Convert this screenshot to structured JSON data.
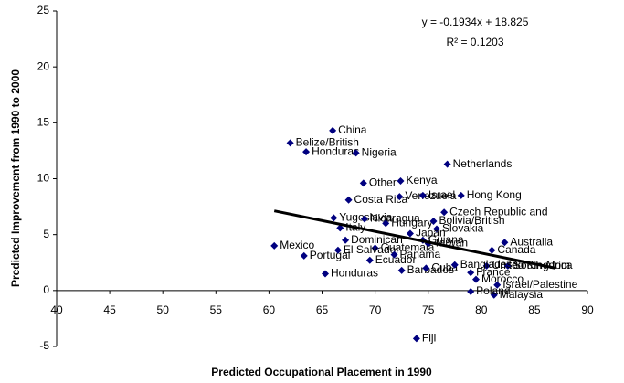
{
  "chart_data": {
    "type": "scatter",
    "xlabel": "Predicted Occupational Placement in 1990",
    "ylabel": "Predicted Improvement from 1990 to 2000",
    "xlim": [
      40,
      90
    ],
    "xticks": [
      40,
      45,
      50,
      55,
      60,
      65,
      70,
      75,
      80,
      85,
      90
    ],
    "ylim": [
      -5,
      25
    ],
    "yticks": [
      -5,
      0,
      5,
      10,
      15,
      20,
      25
    ],
    "color": "#000080",
    "x": [
      66.0,
      62.0,
      63.5,
      68.2,
      76.8,
      72.4,
      68.9,
      67.5,
      72.3,
      74.5,
      78.1,
      66.1,
      66.7,
      69.0,
      71.0,
      76.5,
      75.5,
      75.8,
      73.3,
      74.5,
      82.2,
      81.0,
      60.5,
      63.3,
      65.3,
      67.2,
      69.5,
      72.5,
      74.8,
      79.0,
      80.5,
      82.5,
      81.5,
      81.2,
      79.0,
      79.5,
      73.9,
      70.0,
      75.0,
      66.5,
      71.8,
      77.5
    ],
    "values": [
      14.3,
      13.2,
      12.4,
      12.3,
      11.3,
      9.8,
      9.6,
      8.1,
      8.4,
      8.5,
      8.5,
      6.5,
      5.6,
      6.4,
      6.0,
      7.0,
      6.2,
      5.5,
      5.1,
      4.5,
      4.3,
      3.6,
      4.0,
      3.1,
      1.5,
      4.5,
      2.7,
      1.8,
      2.0,
      1.6,
      2.2,
      2.2,
      0.5,
      -0.4,
      -0.1,
      1.0,
      -4.3,
      3.8,
      4.2,
      3.6,
      3.2,
      2.3
    ],
    "labels": [
      "China",
      "Belize/British",
      "Honduras",
      "Nigeria",
      "Netherlands",
      "Kenya",
      "Other",
      "Costa Rica",
      "Venezuela",
      "Israel",
      "Hong Kong",
      "Yugoslavia",
      "Italy",
      "Nicaragua",
      "Hungary",
      "Czech Republic and",
      "Bolivia/British",
      "Slovakia",
      "Japan",
      "Guiana",
      "Australia",
      "Canada",
      "Mexico",
      "Portugal",
      "Honduras",
      "Dominican",
      "Ecuador",
      "Barbados",
      "Cuba",
      "France",
      "United Kingdom",
      "South Africa",
      "Israel/Palestine",
      "Malaysia",
      "Poland",
      "Morocco",
      "Fiji",
      "Guatemala",
      "Taiwan",
      "El Salvador",
      "Panama",
      "Bangladesh"
    ],
    "trendline": {
      "slope": -0.1934,
      "intercept": 18.825,
      "xrange": [
        60.5,
        87
      ]
    },
    "annotations": [
      "y = -0.1934x + 18.825",
      "R² = 0.1203"
    ]
  }
}
